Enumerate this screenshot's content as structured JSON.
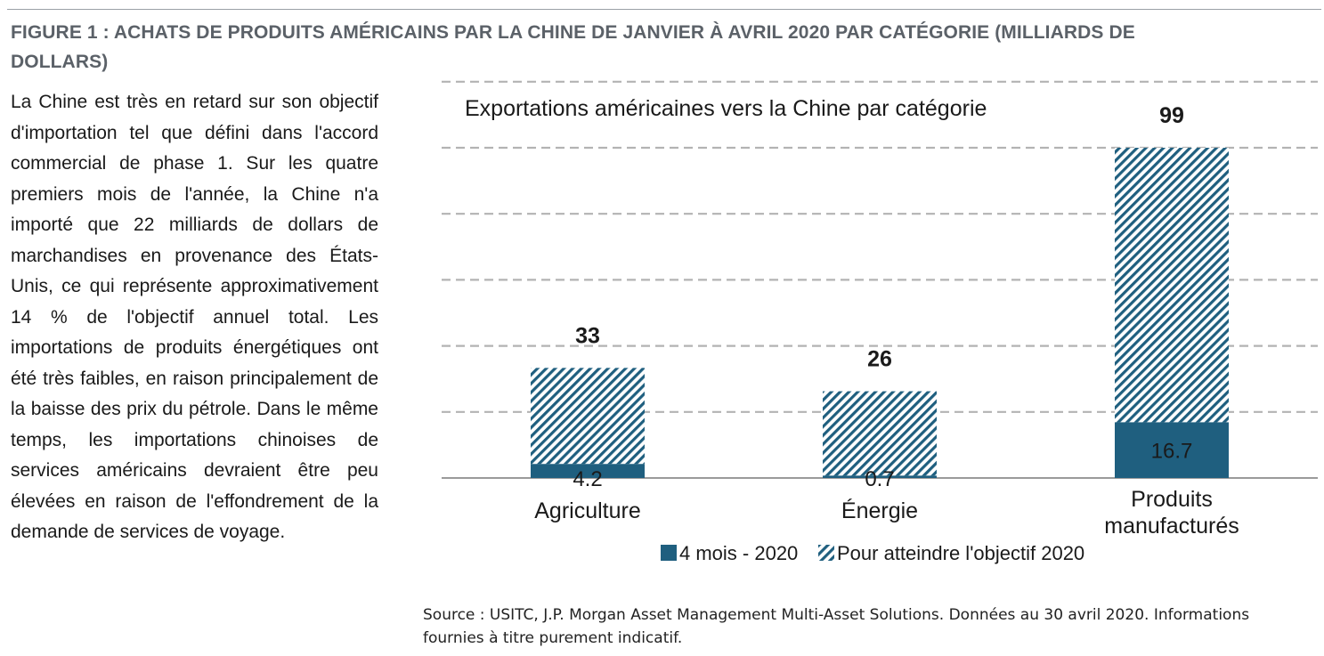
{
  "figure": {
    "title": "FIGURE 1 : ACHATS DE PRODUITS AMÉRICAINS PAR LA CHINE DE JANVIER À AVRIL 2020 PAR CATÉGORIE (MILLIARDS DE DOLLARS)",
    "body": "La Chine est très en retard sur son objectif d'importation tel que défini dans l'accord commercial de phase 1. Sur les quatre premiers mois de l'année, la Chine n'a importé que 22 milliards de dollars de marchandises en provenance des États-Unis, ce qui représente approximativement 14 % de l'objectif annuel total. Les importations de produits énergétiques ont été très faibles, en raison principalement de la baisse des prix du pétrole. Dans le même temps, les importations chinoises de services américains devraient être peu élevées en raison de l'effondrement de la demande de services de voyage.",
    "source": "Source : USITC, J.P. Morgan Asset Management Multi-Asset Solutions. Données au 30 avril 2020. Informations fournies à titre purement indicatif."
  },
  "chart_data": {
    "type": "bar",
    "stacked": true,
    "title": "Exportations américaines vers la Chine par catégorie",
    "categories": [
      [
        "Agriculture"
      ],
      [
        "Énergie"
      ],
      [
        "Produits",
        "manufacturés"
      ]
    ],
    "series": [
      {
        "name": "4 mois - 2020",
        "values": [
          4.2,
          0.7,
          16.7
        ],
        "color": "#1f5f7f",
        "fill": "solid"
      },
      {
        "name": "Pour atteindre l'objectif 2020",
        "values": [
          28.8,
          25.3,
          82.3
        ],
        "color": "#1f5f7f",
        "fill": "hatched"
      }
    ],
    "totals": [
      "33",
      "26",
      "99"
    ],
    "value_labels": [
      "4.2",
      "0.7",
      "16.7"
    ],
    "ylim": [
      0,
      99
    ],
    "gridlines": [
      0,
      19.8,
      39.6,
      59.4,
      79.2,
      99,
      118.8
    ],
    "grid": "dashed",
    "legend_position": "bottom"
  }
}
